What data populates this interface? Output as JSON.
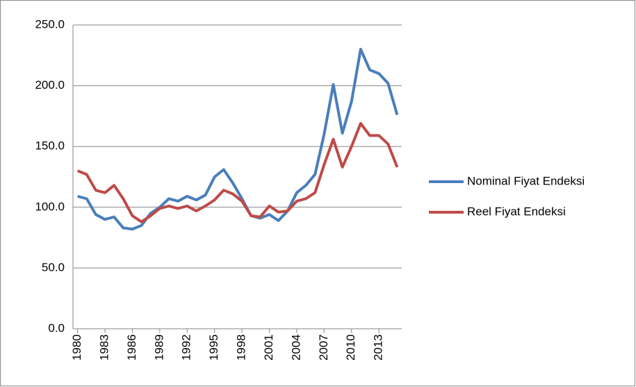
{
  "chart_data": {
    "type": "line",
    "x": [
      1980,
      1981,
      1982,
      1983,
      1984,
      1985,
      1986,
      1987,
      1988,
      1989,
      1990,
      1991,
      1992,
      1993,
      1994,
      1995,
      1996,
      1997,
      1998,
      1999,
      2000,
      2001,
      2002,
      2003,
      2004,
      2005,
      2006,
      2007,
      2008,
      2009,
      2010,
      2011,
      2012,
      2013,
      2014,
      2015
    ],
    "series": [
      {
        "name": "Nominal Fiyat Endeksi",
        "color": "#4a7ebb",
        "values": [
          109,
          107,
          94,
          90,
          92,
          83,
          82,
          85,
          95,
          100,
          107,
          105,
          109,
          106,
          110,
          125,
          131,
          120,
          107,
          93,
          91,
          94,
          89,
          97,
          112,
          118,
          127,
          160,
          201,
          161,
          187,
          230,
          213,
          210,
          202,
          176
        ]
      },
      {
        "name": "Reel Fiyat Endeksi",
        "color": "#be4b48",
        "values": [
          130,
          127,
          114,
          112,
          118,
          107,
          93,
          88,
          93,
          99,
          101,
          99,
          101,
          97,
          101,
          106,
          114,
          111,
          105,
          93,
          92,
          101,
          96,
          97,
          105,
          107,
          112,
          135,
          156,
          133,
          150,
          169,
          159,
          159,
          152,
          133
        ]
      }
    ],
    "xlim": [
      1979.5,
      2015.5
    ],
    "xticks": [
      1980,
      1983,
      1986,
      1989,
      1992,
      1995,
      1998,
      2001,
      2004,
      2007,
      2010,
      2013
    ],
    "ylim": [
      0,
      250
    ],
    "yticks": [
      {
        "value": 0,
        "label": "0.0"
      },
      {
        "value": 50,
        "label": "50.0"
      },
      {
        "value": 100,
        "label": "100.0"
      },
      {
        "value": 150,
        "label": "150.0"
      },
      {
        "value": 200,
        "label": "200.0"
      },
      {
        "value": 250,
        "label": "250.0"
      }
    ],
    "grid": true,
    "legend": "right"
  }
}
